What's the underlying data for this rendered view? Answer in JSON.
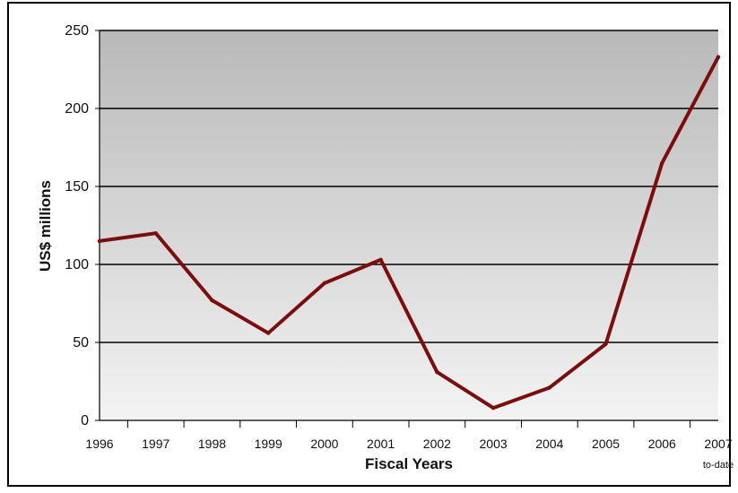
{
  "chart_data": {
    "type": "line",
    "title": "",
    "xlabel": "Fiscal Years",
    "ylabel": "US$ millions",
    "categories": [
      "1996",
      "1997",
      "1998",
      "1999",
      "2000",
      "2001",
      "2002",
      "2003",
      "2004",
      "2005",
      "2006",
      "2007"
    ],
    "category_note": {
      "index": 11,
      "text": "to-date"
    },
    "series": [
      {
        "values": [
          115,
          120,
          77,
          56,
          88,
          103,
          31,
          8,
          21,
          49,
          165,
          233
        ]
      }
    ],
    "ylim": [
      0,
      250
    ],
    "yticks": [
      0,
      50,
      100,
      150,
      200,
      250
    ],
    "grid": true,
    "legend": "none",
    "colors": {
      "line": "#7b0d0d",
      "grid": "#000000",
      "plot_top": "#b9b9b9",
      "plot_bottom": "#f3f3f3",
      "axis": "#000000"
    }
  }
}
